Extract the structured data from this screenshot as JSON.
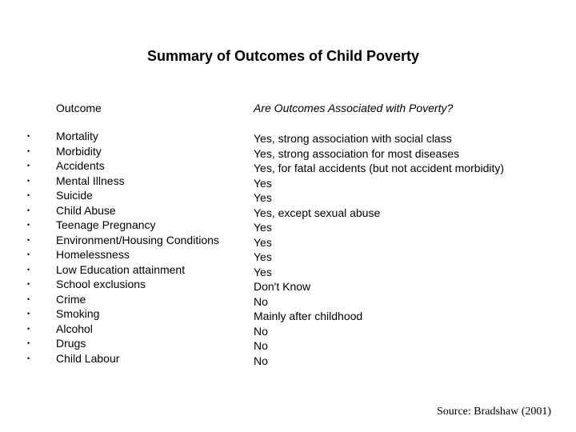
{
  "title": "Summary of Outcomes of Child Poverty",
  "headers": {
    "outcome": "Outcome",
    "association": "Are Outcomes Associated with Poverty?"
  },
  "bullet_glyph": "•",
  "outcomes": [
    "Mortality",
    "Morbidity",
    "Accidents",
    "Mental Illness",
    "Suicide",
    "Child Abuse",
    "Teenage Pregnancy",
    "Environment/Housing Conditions",
    "Homelessness",
    "Low Education attainment",
    "School exclusions",
    "Crime",
    "Smoking",
    "Alcohol",
    "Drugs",
    "Child Labour"
  ],
  "associations": [
    "Yes, strong association with social class",
    "Yes, strong association for most diseases",
    "Yes, for fatal accidents (but not accident morbidity)",
    "Yes",
    "Yes",
    "Yes, except sexual abuse",
    "Yes",
    "Yes",
    "Yes",
    "Yes",
    "Don't Know",
    "No",
    "Mainly after childhood",
    "No",
    "No",
    "No"
  ],
  "source": "Source: Bradshaw (2001)"
}
